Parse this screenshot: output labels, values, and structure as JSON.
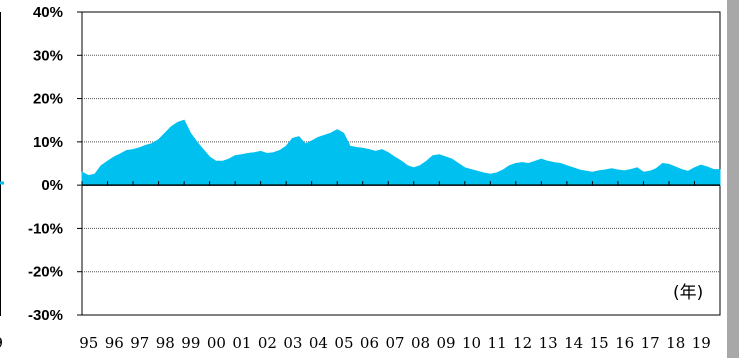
{
  "chart_data": {
    "type": "area",
    "xlabel": "",
    "ylabel": "",
    "x_unit": "(年)",
    "ylim": [
      -30,
      40
    ],
    "y_ticks": [
      40,
      30,
      20,
      10,
      0,
      -10,
      -20,
      -30
    ],
    "y_tick_format": "%",
    "x_tick_labels": [
      "95",
      "96",
      "97",
      "98",
      "99",
      "00",
      "01",
      "02",
      "03",
      "04",
      "05",
      "06",
      "07",
      "08",
      "09",
      "10",
      "11",
      "12",
      "13",
      "14",
      "15",
      "16",
      "17",
      "18",
      "19"
    ],
    "partial_left_label": "9",
    "grid": "horizontal dotted",
    "series": [
      {
        "color": "#00c0f0",
        "x": [
          1995.0,
          1995.25,
          1995.5,
          1995.75,
          1996.0,
          1996.25,
          1996.5,
          1996.75,
          1997.0,
          1997.25,
          1997.5,
          1997.75,
          1998.0,
          1998.25,
          1998.5,
          1998.75,
          1999.0,
          1999.25,
          1999.5,
          1999.75,
          2000.0,
          2000.25,
          2000.5,
          2000.75,
          2001.0,
          2001.25,
          2001.5,
          2001.75,
          2002.0,
          2002.25,
          2002.5,
          2002.75,
          2003.0,
          2003.25,
          2003.5,
          2003.75,
          2004.0,
          2004.25,
          2004.5,
          2004.75,
          2005.0,
          2005.25,
          2005.5,
          2005.75,
          2006.0,
          2006.25,
          2006.5,
          2006.75,
          2007.0,
          2007.25,
          2007.5,
          2007.75,
          2008.0,
          2008.25,
          2008.5,
          2008.75,
          2009.0,
          2009.25,
          2009.5,
          2009.75,
          2010.0,
          2010.25,
          2010.5,
          2010.75,
          2011.0,
          2011.25,
          2011.5,
          2011.75,
          2012.0,
          2012.25,
          2012.5,
          2012.75,
          2013.0,
          2013.25,
          2013.5,
          2013.75,
          2014.0,
          2014.25,
          2014.5,
          2014.75,
          2015.0,
          2015.25,
          2015.5,
          2015.75,
          2016.0,
          2016.25,
          2016.5,
          2016.75,
          2017.0,
          2017.25,
          2017.5,
          2017.75,
          2018.0,
          2018.25,
          2018.5,
          2018.75,
          2019.0,
          2019.25,
          2019.5,
          2019.75
        ],
        "values": [
          3.0,
          2.2,
          2.5,
          4.5,
          5.5,
          6.5,
          7.2,
          8.0,
          8.2,
          8.6,
          9.2,
          9.6,
          10.5,
          12.0,
          13.5,
          14.5,
          15.0,
          12.0,
          10.0,
          8.2,
          6.5,
          5.5,
          5.5,
          6.0,
          6.8,
          7.0,
          7.3,
          7.5,
          7.8,
          7.3,
          7.5,
          8.0,
          9.0,
          10.8,
          11.2,
          9.5,
          10.2,
          11.0,
          11.5,
          12.0,
          12.8,
          12.0,
          9.0,
          8.7,
          8.5,
          8.2,
          7.8,
          8.2,
          7.5,
          6.5,
          5.6,
          4.5,
          4.0,
          4.5,
          5.5,
          6.8,
          7.0,
          6.5,
          6.0,
          5.0,
          4.0,
          3.6,
          3.2,
          2.8,
          2.5,
          2.8,
          3.5,
          4.5,
          5.0,
          5.2,
          5.0,
          5.5,
          6.0,
          5.5,
          5.2,
          5.0,
          4.5,
          4.0,
          3.5,
          3.2,
          3.0,
          3.3,
          3.5,
          3.8,
          3.5,
          3.3,
          3.6,
          4.0,
          3.0,
          3.2,
          3.8,
          5.0,
          4.8,
          4.2,
          3.6,
          3.2,
          4.0,
          4.6,
          4.2,
          3.6
        ]
      }
    ]
  }
}
